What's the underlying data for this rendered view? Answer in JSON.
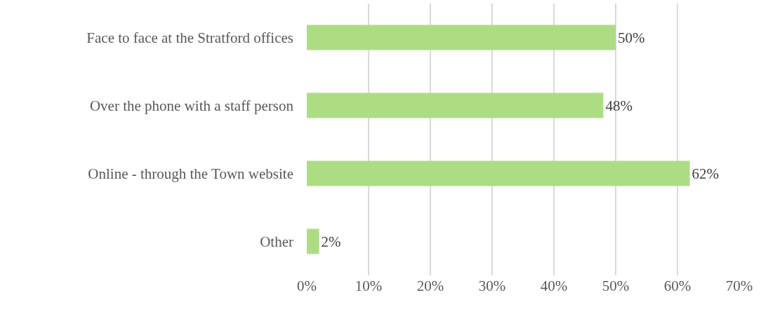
{
  "chart_data": {
    "type": "bar",
    "orientation": "horizontal",
    "categories": [
      "Face to face at the Stratford offices",
      "Over the phone with a staff person",
      "Online - through the Town website",
      "Other"
    ],
    "values": [
      50,
      48,
      62,
      2
    ],
    "value_labels": [
      "50%",
      "48%",
      "62%",
      "2%"
    ],
    "color": "#addd83",
    "xlim": [
      0,
      70
    ],
    "xticks": [
      {
        "value": 0,
        "label": "0%"
      },
      {
        "value": 10,
        "label": "10%"
      },
      {
        "value": 20,
        "label": "20%"
      },
      {
        "value": 30,
        "label": "30%"
      },
      {
        "value": 40,
        "label": "40%"
      },
      {
        "value": 50,
        "label": "50%"
      },
      {
        "value": 60,
        "label": "60%"
      },
      {
        "value": 70,
        "label": "70%"
      }
    ],
    "grid": "x"
  }
}
